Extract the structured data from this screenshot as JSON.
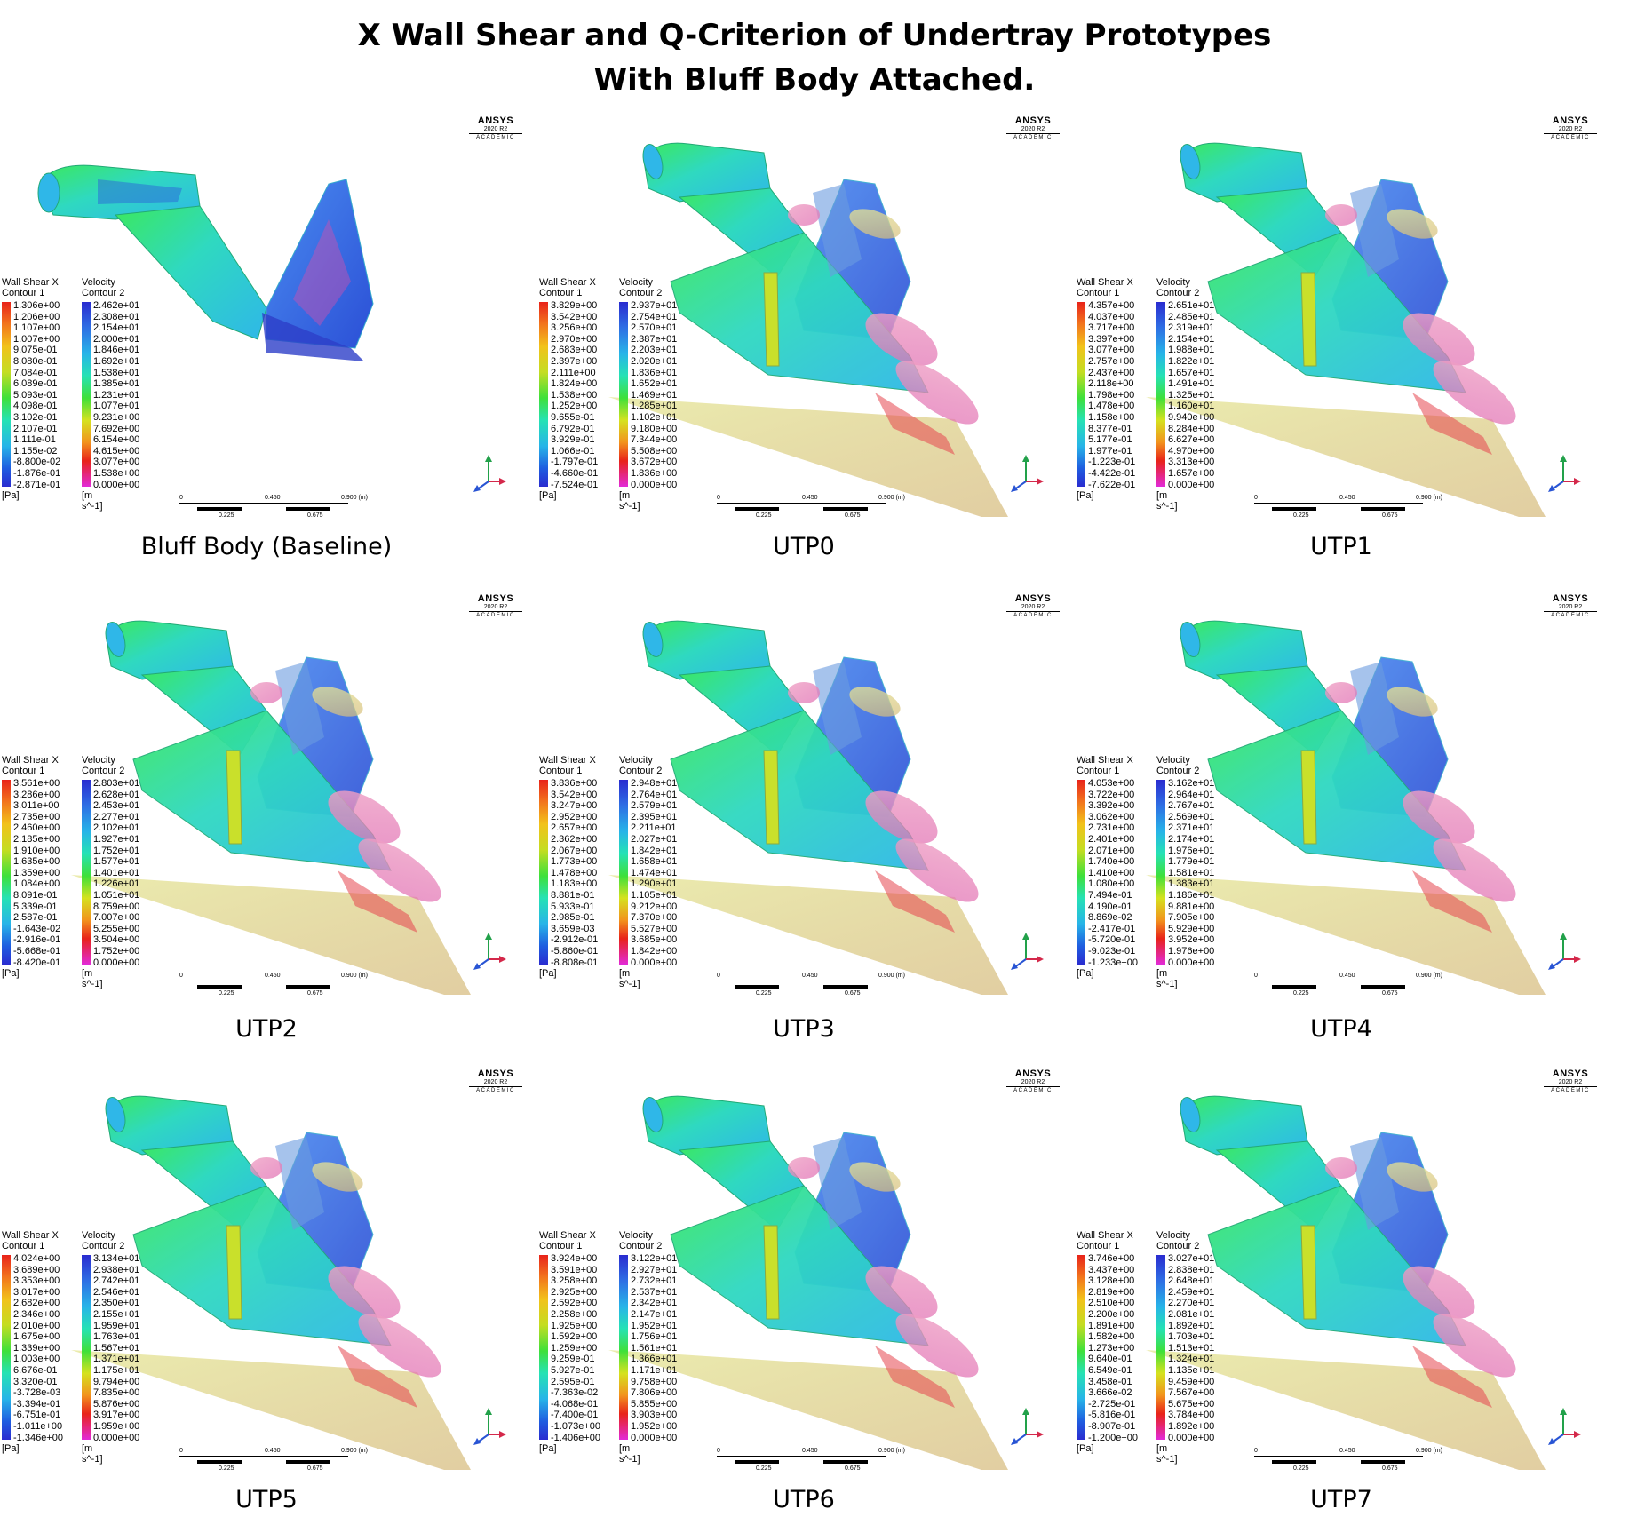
{
  "title_line1": "X Wall Shear and Q-Criterion of Undertray Prototypes",
  "title_line2": "With Bluff Body Attached.",
  "ansys": {
    "brand": "ANSYS",
    "version": "2020 R2",
    "academic": "ACADEMIC"
  },
  "legend_common": {
    "shear_title": "Wall Shear X",
    "shear_sub": "Contour 1",
    "vel_title": "Velocity",
    "vel_sub": "Contour 2",
    "shear_unit": "[Pa]",
    "vel_unit": "[m s^-1]"
  },
  "scale": {
    "l0": "0",
    "l1": "0.225",
    "l2": "0.450",
    "l3": "0.675",
    "l4": "0.900 (m)"
  },
  "panels": [
    {
      "caption": "Bluff Body (Baseline)",
      "shear": [
        "1.306e+00",
        "1.206e+00",
        "1.107e+00",
        "1.007e+00",
        "9.075e-01",
        "8.080e-01",
        "7.084e-01",
        "6.089e-01",
        "5.093e-01",
        "4.098e-01",
        "3.102e-01",
        "2.107e-01",
        "1.111e-01",
        "1.155e-02",
        "-8.800e-02",
        "-1.876e-01",
        "-2.871e-01"
      ],
      "velocity": [
        "2.462e+01",
        "2.308e+01",
        "2.154e+01",
        "2.000e+01",
        "1.846e+01",
        "1.692e+01",
        "1.538e+01",
        "1.385e+01",
        "1.231e+01",
        "1.077e+01",
        "9.231e+00",
        "7.692e+00",
        "6.154e+00",
        "4.615e+00",
        "3.077e+00",
        "1.538e+00",
        "0.000e+00"
      ]
    },
    {
      "caption": "UTP0",
      "shear": [
        "3.829e+00",
        "3.542e+00",
        "3.256e+00",
        "2.970e+00",
        "2.683e+00",
        "2.397e+00",
        "2.111e+00",
        "1.824e+00",
        "1.538e+00",
        "1.252e+00",
        "9.655e-01",
        "6.792e-01",
        "3.929e-01",
        "1.066e-01",
        "-1.797e-01",
        "-4.660e-01",
        "-7.524e-01"
      ],
      "velocity": [
        "2.937e+01",
        "2.754e+01",
        "2.570e+01",
        "2.387e+01",
        "2.203e+01",
        "2.020e+01",
        "1.836e+01",
        "1.652e+01",
        "1.469e+01",
        "1.285e+01",
        "1.102e+01",
        "9.180e+00",
        "7.344e+00",
        "5.508e+00",
        "3.672e+00",
        "1.836e+00",
        "0.000e+00"
      ]
    },
    {
      "caption": "UTP1",
      "shear": [
        "4.357e+00",
        "4.037e+00",
        "3.717e+00",
        "3.397e+00",
        "3.077e+00",
        "2.757e+00",
        "2.437e+00",
        "2.118e+00",
        "1.798e+00",
        "1.478e+00",
        "1.158e+00",
        "8.377e-01",
        "5.177e-01",
        "1.977e-01",
        "-1.223e-01",
        "-4.422e-01",
        "-7.622e-01"
      ],
      "velocity": [
        "2.651e+01",
        "2.485e+01",
        "2.319e+01",
        "2.154e+01",
        "1.988e+01",
        "1.822e+01",
        "1.657e+01",
        "1.491e+01",
        "1.325e+01",
        "1.160e+01",
        "9.940e+00",
        "8.284e+00",
        "6.627e+00",
        "4.970e+00",
        "3.313e+00",
        "1.657e+00",
        "0.000e+00"
      ]
    },
    {
      "caption": "UTP2",
      "shear": [
        "3.561e+00",
        "3.286e+00",
        "3.011e+00",
        "2.735e+00",
        "2.460e+00",
        "2.185e+00",
        "1.910e+00",
        "1.635e+00",
        "1.359e+00",
        "1.084e+00",
        "8.091e-01",
        "5.339e-01",
        "2.587e-01",
        "-1.643e-02",
        "-2.916e-01",
        "-5.668e-01",
        "-8.420e-01"
      ],
      "velocity": [
        "2.803e+01",
        "2.628e+01",
        "2.453e+01",
        "2.277e+01",
        "2.102e+01",
        "1.927e+01",
        "1.752e+01",
        "1.577e+01",
        "1.401e+01",
        "1.226e+01",
        "1.051e+01",
        "8.759e+00",
        "7.007e+00",
        "5.255e+00",
        "3.504e+00",
        "1.752e+00",
        "0.000e+00"
      ]
    },
    {
      "caption": "UTP3",
      "shear": [
        "3.836e+00",
        "3.542e+00",
        "3.247e+00",
        "2.952e+00",
        "2.657e+00",
        "2.362e+00",
        "2.067e+00",
        "1.773e+00",
        "1.478e+00",
        "1.183e+00",
        "8.881e-01",
        "5.933e-01",
        "2.985e-01",
        "3.659e-03",
        "-2.912e-01",
        "-5.860e-01",
        "-8.808e-01"
      ],
      "velocity": [
        "2.948e+01",
        "2.764e+01",
        "2.579e+01",
        "2.395e+01",
        "2.211e+01",
        "2.027e+01",
        "1.842e+01",
        "1.658e+01",
        "1.474e+01",
        "1.290e+01",
        "1.105e+01",
        "9.212e+00",
        "7.370e+00",
        "5.527e+00",
        "3.685e+00",
        "1.842e+00",
        "0.000e+00"
      ]
    },
    {
      "caption": "UTP4",
      "shear": [
        "4.053e+00",
        "3.722e+00",
        "3.392e+00",
        "3.062e+00",
        "2.731e+00",
        "2.401e+00",
        "2.071e+00",
        "1.740e+00",
        "1.410e+00",
        "1.080e+00",
        "7.494e-01",
        "4.190e-01",
        "8.869e-02",
        "-2.417e-01",
        "-5.720e-01",
        "-9.023e-01",
        "-1.233e+00"
      ],
      "velocity": [
        "3.162e+01",
        "2.964e+01",
        "2.767e+01",
        "2.569e+01",
        "2.371e+01",
        "2.174e+01",
        "1.976e+01",
        "1.779e+01",
        "1.581e+01",
        "1.383e+01",
        "1.186e+01",
        "9.881e+00",
        "7.905e+00",
        "5.929e+00",
        "3.952e+00",
        "1.976e+00",
        "0.000e+00"
      ]
    },
    {
      "caption": "UTP5",
      "shear": [
        "4.024e+00",
        "3.689e+00",
        "3.353e+00",
        "3.017e+00",
        "2.682e+00",
        "2.346e+00",
        "2.010e+00",
        "1.675e+00",
        "1.339e+00",
        "1.003e+00",
        "6.676e-01",
        "3.320e-01",
        "-3.728e-03",
        "-3.394e-01",
        "-6.751e-01",
        "-1.011e+00",
        "-1.346e+00"
      ],
      "velocity": [
        "3.134e+01",
        "2.938e+01",
        "2.742e+01",
        "2.546e+01",
        "2.350e+01",
        "2.155e+01",
        "1.959e+01",
        "1.763e+01",
        "1.567e+01",
        "1.371e+01",
        "1.175e+01",
        "9.794e+00",
        "7.835e+00",
        "5.876e+00",
        "3.917e+00",
        "1.959e+00",
        "0.000e+00"
      ]
    },
    {
      "caption": "UTP6",
      "shear": [
        "3.924e+00",
        "3.591e+00",
        "3.258e+00",
        "2.925e+00",
        "2.592e+00",
        "2.258e+00",
        "1.925e+00",
        "1.592e+00",
        "1.259e+00",
        "9.259e-01",
        "5.927e-01",
        "2.595e-01",
        "-7.363e-02",
        "-4.068e-01",
        "-7.400e-01",
        "-1.073e+00",
        "-1.406e+00"
      ],
      "velocity": [
        "3.122e+01",
        "2.927e+01",
        "2.732e+01",
        "2.537e+01",
        "2.342e+01",
        "2.147e+01",
        "1.952e+01",
        "1.756e+01",
        "1.561e+01",
        "1.366e+01",
        "1.171e+01",
        "9.758e+00",
        "7.806e+00",
        "5.855e+00",
        "3.903e+00",
        "1.952e+00",
        "0.000e+00"
      ]
    },
    {
      "caption": "UTP7",
      "shear": [
        "3.746e+00",
        "3.437e+00",
        "3.128e+00",
        "2.819e+00",
        "2.510e+00",
        "2.200e+00",
        "1.891e+00",
        "1.582e+00",
        "1.273e+00",
        "9.640e-01",
        "6.549e-01",
        "3.458e-01",
        "3.666e-02",
        "-2.725e-01",
        "-5.816e-01",
        "-8.907e-01",
        "-1.200e+00"
      ],
      "velocity": [
        "3.027e+01",
        "2.838e+01",
        "2.648e+01",
        "2.459e+01",
        "2.270e+01",
        "2.081e+01",
        "1.892e+01",
        "1.703e+01",
        "1.513e+01",
        "1.324e+01",
        "1.135e+01",
        "9.459e+00",
        "7.567e+00",
        "5.675e+00",
        "3.784e+00",
        "1.892e+00",
        "0.000e+00"
      ]
    }
  ]
}
